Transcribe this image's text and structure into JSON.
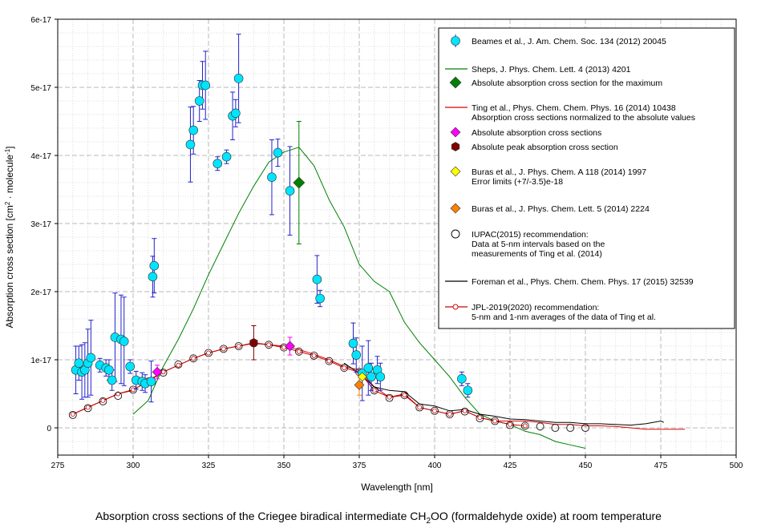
{
  "chart_data": {
    "type": "scatter",
    "title": "Absorption cross sections of the Criegee biradical intermediate CH2OO (formaldehyde oxide) at room temperature",
    "title_parts": {
      "pre": "Absorption cross sections of the Criegee biradical intermediate CH",
      "sub": "2",
      "post": "OO (formaldehyde oxide) at room temperature"
    },
    "xlabel": "Wavelength [nm]",
    "ylabel": "Absorption cross section [cm² · molecule⁻¹]",
    "ylabel_parts": {
      "pre": "Absorption  cross section [cm",
      "sup1": "2",
      "mid": " · molecule",
      "sup2": "-1",
      "post": "]"
    },
    "xlim": [
      275,
      500
    ],
    "ylim": [
      -4e-18,
      6e-17
    ],
    "grid": true,
    "legend_position": "right",
    "x_ticks": [
      275,
      300,
      325,
      350,
      375,
      400,
      425,
      450,
      475,
      500
    ],
    "y_ticks": [
      0,
      1e-17,
      2e-17,
      3e-17,
      4e-17,
      5e-17,
      6e-17
    ],
    "y_tick_labels": [
      "0",
      "1e-17",
      "2e-17",
      "3e-17",
      "4e-17",
      "5e-17",
      "6e-17"
    ],
    "colors": {
      "beames": "#00e5ff",
      "beames_err": "#2222cc",
      "sheps": "#008000",
      "ting": "#dd0000",
      "ting_abs": "#ff00ff",
      "ting_peak": "#800000",
      "buras2014a": "#ffff00",
      "buras2014b": "#ff8000",
      "foreman": "#000000",
      "jpl": "#cc0000"
    },
    "legend": [
      {
        "key": "beames",
        "lines": [
          "Beames et al., J. Am. Chem. Soc. 134 (2012) 20045"
        ]
      },
      {
        "key": "sheps",
        "lines": [
          "Sheps, J. Phys. Chem. Lett. 4 (2013) 4201"
        ]
      },
      {
        "key": "sheps_max",
        "lines": [
          "Absolute absorption cross section for the maximum"
        ]
      },
      {
        "key": "ting",
        "lines": [
          "Ting et al., Phys. Chem. Chem. Phys. 16 (2014) 10438",
          "Absorption cross sections normalized to the absolute values"
        ]
      },
      {
        "key": "ting_abs",
        "lines": [
          "Absolute absorption cross sections"
        ]
      },
      {
        "key": "ting_peak",
        "lines": [
          "Absolute peak absorption cross section"
        ]
      },
      {
        "key": "buras2014a",
        "lines": [
          "Buras et al., J. Phys. Chem. A 118 (2014) 1997",
          "Error limits (+7/-3.5)e-18"
        ]
      },
      {
        "key": "buras2014b",
        "lines": [
          "Buras et al., J. Phys. Chem. Lett. 5 (2014) 2224"
        ]
      },
      {
        "key": "iupac",
        "lines": [
          "IUPAC(2015) recommendation:",
          "Data at 5-nm intervals based on the",
          "measurements of Ting et al. (2014)"
        ]
      },
      {
        "key": "foreman",
        "lines": [
          "Foreman et al., Phys. Chem. Chem. Phys. 17 (2015) 32539"
        ]
      },
      {
        "key": "jpl",
        "lines": [
          "JPL-2019(2020) recommendation:",
          "5-nm and 1-nm averages of the data of Ting et al."
        ]
      }
    ],
    "series": [
      {
        "name": "Beames et al., J. Am. Chem. Soc. 134 (2012) 20045",
        "key": "beames",
        "type": "scatter_err",
        "x": [
          281,
          282,
          283,
          284,
          285,
          286,
          289,
          291,
          292,
          293,
          294,
          296,
          297,
          299,
          301,
          303,
          304,
          306,
          306.5,
          307,
          319,
          320,
          322,
          323,
          324,
          328,
          331,
          333,
          334,
          335,
          346,
          348,
          352,
          361,
          362,
          373,
          374,
          376,
          378,
          379,
          381,
          382,
          409,
          411
        ],
        "y": [
          8.5e-18,
          9.5e-18,
          8.2e-18,
          8.5e-18,
          9.5e-18,
          1.03e-17,
          9.2e-18,
          8.8e-18,
          8.5e-18,
          7e-18,
          1.33e-17,
          1.3e-17,
          1.27e-17,
          9e-18,
          7e-18,
          6.8e-18,
          6.5e-18,
          6.8e-18,
          2.22e-17,
          2.38e-17,
          4.16e-17,
          4.37e-17,
          4.8e-17,
          5.03e-17,
          5.03e-17,
          3.88e-17,
          3.98e-17,
          4.58e-17,
          4.62e-17,
          5.13e-17,
          3.68e-17,
          4.04e-17,
          3.48e-17,
          2.18e-17,
          1.9e-17,
          1.24e-17,
          1.07e-17,
          8e-18,
          8.8e-18,
          7.5e-18,
          8.5e-18,
          7.5e-18,
          7.2e-18,
          5.5e-18
        ],
        "err": [
          3.5e-18,
          2.5e-18,
          4e-18,
          4e-18,
          5e-18,
          5.5e-18,
          1e-18,
          1.2e-18,
          1.5e-18,
          1.5e-18,
          6.5e-18,
          6.5e-18,
          6.5e-18,
          1e-18,
          1.3e-18,
          1.3e-18,
          1.3e-18,
          3e-18,
          3e-18,
          4e-18,
          5.5e-18,
          3.5e-18,
          3e-18,
          3.5e-18,
          5e-18,
          1e-18,
          1e-18,
          3.5e-18,
          2e-18,
          6.5e-18,
          5.5e-18,
          2e-18,
          6.5e-18,
          3.5e-18,
          1.2e-18,
          3e-18,
          2.5e-18,
          4e-18,
          4e-18,
          2e-18,
          2e-18,
          2e-18,
          1e-18,
          1e-18
        ]
      },
      {
        "name": "Sheps, J. Phys. Chem. Lett. 4 (2013) 4201",
        "key": "sheps",
        "type": "line",
        "x": [
          300,
          305,
          310,
          315,
          320,
          325,
          330,
          335,
          340,
          345,
          350,
          355,
          360,
          365,
          370,
          375,
          380,
          385,
          390,
          395,
          400,
          405,
          410,
          415,
          420,
          425,
          430,
          435,
          440,
          445,
          450
        ],
        "y": [
          2e-18,
          4e-18,
          9e-18,
          1.3e-17,
          1.75e-17,
          2.25e-17,
          2.7e-17,
          3.15e-17,
          3.55e-17,
          3.9e-17,
          4.05e-17,
          4.12e-17,
          3.85e-17,
          3.35e-17,
          2.95e-17,
          2.4e-17,
          2.15e-17,
          2e-17,
          1.55e-17,
          1.25e-17,
          1e-17,
          7.5e-18,
          4.5e-18,
          2e-18,
          1e-18,
          5e-19,
          -5e-19,
          -1e-18,
          -2e-18,
          -2.5e-18,
          -3e-18
        ]
      },
      {
        "name": "Absolute absorption cross section for the maximum",
        "key": "sheps_max",
        "type": "point_err",
        "x": [
          355
        ],
        "y": [
          3.6e-17
        ],
        "err": [
          9e-18
        ]
      },
      {
        "name": "Ting et al., Phys. Chem. Chem. Phys. 16 (2014) 10438",
        "key": "ting",
        "type": "line",
        "x": [
          280,
          285,
          290,
          295,
          300,
          305,
          310,
          315,
          320,
          325,
          330,
          335,
          340,
          345,
          350,
          355,
          360,
          365,
          370,
          375,
          380,
          385,
          390,
          395,
          400,
          405,
          410,
          415,
          420,
          425,
          430,
          435,
          440,
          445,
          450,
          455,
          460,
          465,
          470,
          475,
          480,
          483
        ],
        "y": [
          2e-18,
          3e-18,
          4e-18,
          5e-18,
          5.5e-18,
          7e-18,
          8.2e-18,
          9.2e-18,
          1.02e-17,
          1.1e-17,
          1.16e-17,
          1.2e-17,
          1.25e-17,
          1.22e-17,
          1.2e-17,
          1.15e-17,
          1.08e-17,
          1e-17,
          9e-18,
          8.5e-18,
          6e-18,
          4.5e-18,
          5e-18,
          3e-18,
          2.5e-18,
          2e-18,
          2.5e-18,
          1.5e-18,
          1e-18,
          1e-18,
          1e-18,
          8e-19,
          5e-19,
          5e-19,
          3e-19,
          3e-19,
          2e-19,
          0,
          -2e-19,
          -2e-19,
          -2e-19,
          -2e-19
        ]
      },
      {
        "name": "Absolute absorption cross sections",
        "key": "ting_abs",
        "type": "point",
        "x": [
          308,
          352
        ],
        "y": [
          8.2e-18,
          1.2e-17
        ],
        "err": [
          1e-18,
          1.3e-18
        ]
      },
      {
        "name": "Absolute peak absorption cross section",
        "key": "ting_peak",
        "type": "point_err",
        "x": [
          340
        ],
        "y": [
          1.25e-17
        ],
        "err": [
          2.5e-18
        ]
      },
      {
        "name": "Buras et al., J. Phys. Chem. A 118 (2014) 1997",
        "key": "buras2014a",
        "type": "point",
        "x": [
          376
        ],
        "y": [
          7.5e-18
        ]
      },
      {
        "name": "Buras et al., J. Phys. Chem. Lett. 5 (2014) 2224",
        "key": "buras2014b",
        "type": "point_err",
        "x": [
          375
        ],
        "y": [
          6.3e-18
        ],
        "err": [
          1.5e-18
        ]
      },
      {
        "name": "IUPAC(2015) recommendation",
        "key": "iupac",
        "type": "circles",
        "x": [
          280,
          285,
          290,
          295,
          300,
          305,
          310,
          315,
          320,
          325,
          330,
          335,
          340,
          345,
          350,
          355,
          360,
          365,
          370,
          375,
          380,
          385,
          390,
          395,
          400,
          405,
          410,
          415,
          420,
          425,
          430,
          435,
          440,
          445,
          450
        ],
        "y": [
          1.9e-18,
          2.9e-18,
          3.9e-18,
          4.7e-18,
          5.6e-18,
          6.8e-18,
          8.1e-18,
          9.3e-18,
          1.02e-17,
          1.1e-17,
          1.16e-17,
          1.2e-17,
          1.24e-17,
          1.22e-17,
          1.18e-17,
          1.12e-17,
          1.06e-17,
          9.8e-18,
          8.8e-18,
          8.2e-18,
          5.5e-18,
          4.4e-18,
          4.8e-18,
          3e-18,
          2.5e-18,
          2e-18,
          2.4e-18,
          1.4e-18,
          1e-18,
          4e-19,
          3e-19,
          2e-19,
          0,
          0,
          0
        ]
      },
      {
        "name": "Foreman et al., Phys. Chem. Chem. Phys. 17 (2015) 32539",
        "key": "foreman",
        "type": "line",
        "x": [
          370,
          375,
          380,
          385,
          390,
          395,
          400,
          405,
          410,
          415,
          420,
          425,
          430,
          435,
          440,
          445,
          450,
          455,
          460,
          465,
          470,
          475,
          476
        ],
        "y": [
          9.5e-18,
          8e-18,
          6e-18,
          5.5e-18,
          5.3e-18,
          3.5e-18,
          3.2e-18,
          2.5e-18,
          2.7e-18,
          2e-18,
          1.7e-18,
          1.3e-18,
          1.2e-18,
          1e-18,
          8e-19,
          8e-19,
          6e-19,
          6e-19,
          5e-19,
          4e-19,
          6e-19,
          1e-18,
          8e-19
        ]
      },
      {
        "name": "JPL-2019(2020) recommendation",
        "key": "jpl",
        "type": "line_circles",
        "x": [
          280,
          285,
          290,
          295,
          300,
          305,
          310,
          315,
          320,
          325,
          330,
          335,
          340,
          345,
          350,
          355,
          360,
          365,
          370,
          375,
          380,
          385,
          390,
          395,
          400,
          405,
          410,
          415,
          420,
          425,
          430
        ],
        "y": [
          2e-18,
          3e-18,
          4e-18,
          5e-18,
          5.6e-18,
          6.8e-18,
          8.2e-18,
          9.2e-18,
          1.02e-17,
          1.1e-17,
          1.16e-17,
          1.2e-17,
          1.24e-17,
          1.22e-17,
          1.18e-17,
          1.12e-17,
          1.06e-17,
          9.8e-18,
          8.8e-18,
          8.2e-18,
          5.5e-18,
          4.5e-18,
          4.8e-18,
          3e-18,
          2.5e-18,
          2e-18,
          2.5e-18,
          1.5e-18,
          1e-18,
          5e-19,
          3e-19
        ]
      }
    ]
  }
}
